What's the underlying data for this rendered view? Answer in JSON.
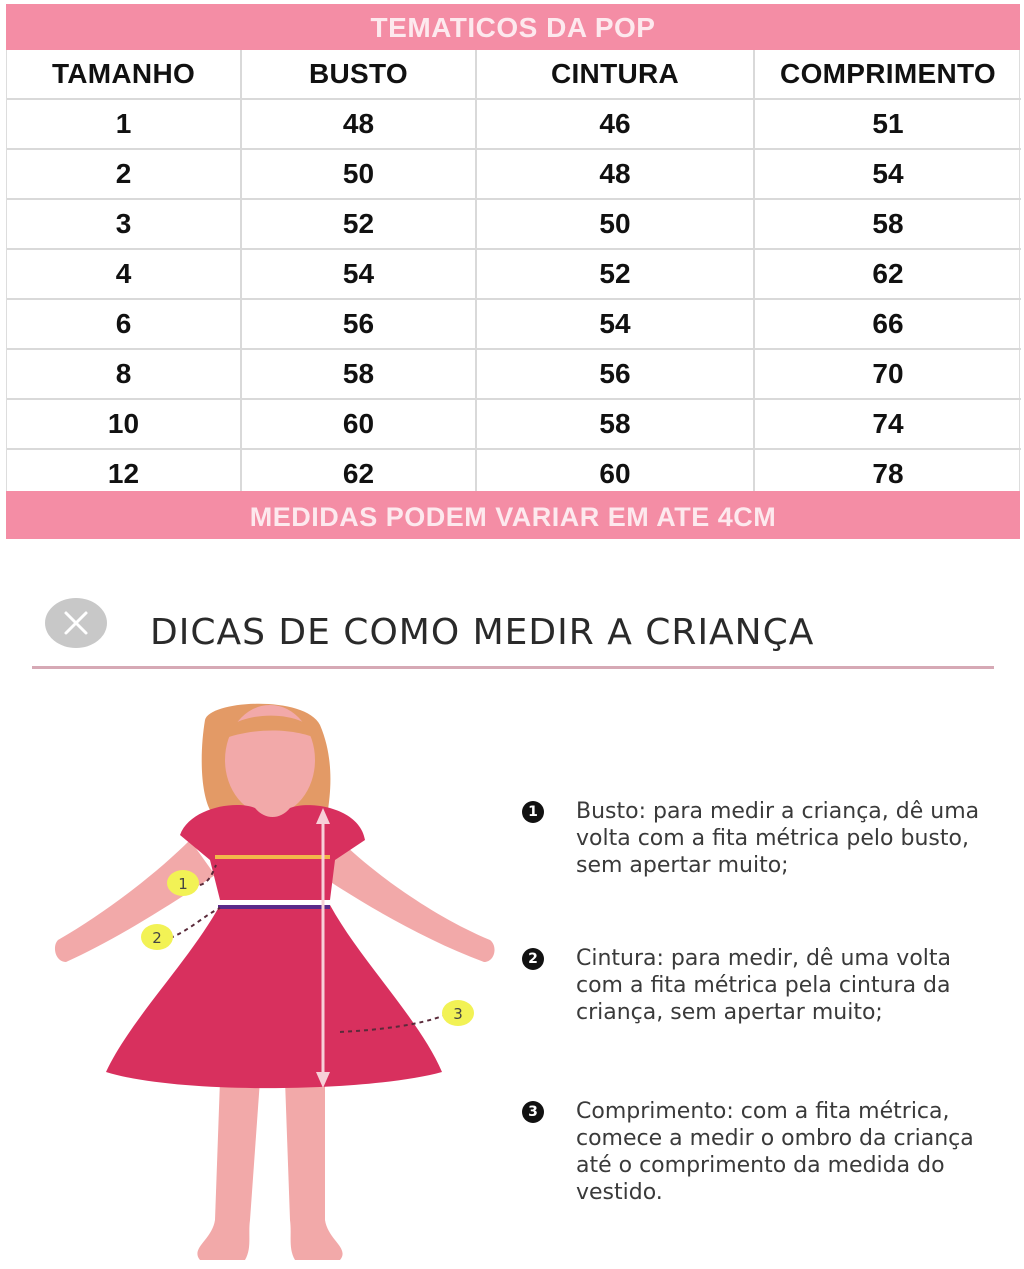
{
  "table": {
    "title": "TEMATICOS DA POP",
    "headers": [
      "TAMANHO",
      "BUSTO",
      "CINTURA",
      "COMPRIMENTO"
    ],
    "rows": [
      [
        "1",
        "48",
        "46",
        "51"
      ],
      [
        "2",
        "50",
        "48",
        "54"
      ],
      [
        "3",
        "52",
        "50",
        "58"
      ],
      [
        "4",
        "54",
        "52",
        "62"
      ],
      [
        "6",
        "56",
        "54",
        "66"
      ],
      [
        "8",
        "58",
        "56",
        "70"
      ],
      [
        "10",
        "60",
        "58",
        "74"
      ],
      [
        "12",
        "62",
        "60",
        "78"
      ]
    ],
    "footer_note": "MEDIDAS PODEM VARIAR EM ATE 4CM"
  },
  "tips": {
    "title": "DICAS DE COMO MEDIR A CRIANÇA",
    "close_icon": "close-icon",
    "items": [
      {
        "number": "1",
        "text": "Busto: para medir a criança, dê uma volta com a fita métrica pelo busto, sem apertar muito;"
      },
      {
        "number": "2",
        "text": "Cintura: para medir, dê uma volta com a fita métrica pela cintura da criança, sem apertar muito;"
      },
      {
        "number": "3",
        "text": "Comprimento: com a fita métrica, comece a medir o ombro da criança até o comprimento da medida do vestido."
      }
    ],
    "illustration_markers": [
      "1",
      "2",
      "3"
    ]
  },
  "colors": {
    "banner": "#f48da5",
    "banner_text": "#fde9ee",
    "dress": "#d8305e",
    "skin": "#f2a9a9",
    "hair": "#e39a66",
    "marker": "#f2f255",
    "bust_line": "#f2b84a",
    "waist_line": "#5a2a8a"
  }
}
